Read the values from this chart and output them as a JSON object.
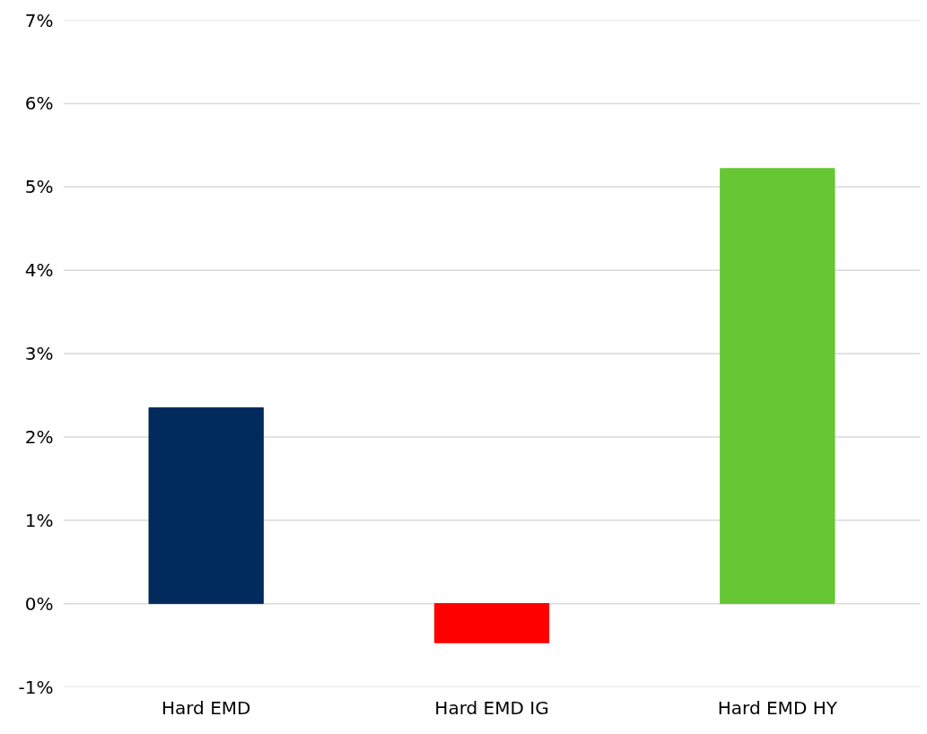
{
  "chart_data": {
    "type": "bar",
    "categories": [
      "Hard EMD",
      "Hard EMD IG",
      "Hard EMD HY"
    ],
    "values": [
      2.35,
      -0.47,
      5.22
    ],
    "colors": [
      "#002b5c",
      "#ff0000",
      "#66c633"
    ],
    "ylim": [
      -1,
      7
    ],
    "yticks": [
      {
        "value": -1,
        "label": "-1%"
      },
      {
        "value": 0,
        "label": "0%"
      },
      {
        "value": 1,
        "label": "1%"
      },
      {
        "value": 2,
        "label": "2%"
      },
      {
        "value": 3,
        "label": "3%"
      },
      {
        "value": 4,
        "label": "4%"
      },
      {
        "value": 5,
        "label": "5%"
      },
      {
        "value": 6,
        "label": "6%"
      },
      {
        "value": 7,
        "label": "7%"
      }
    ],
    "grid": "y"
  }
}
